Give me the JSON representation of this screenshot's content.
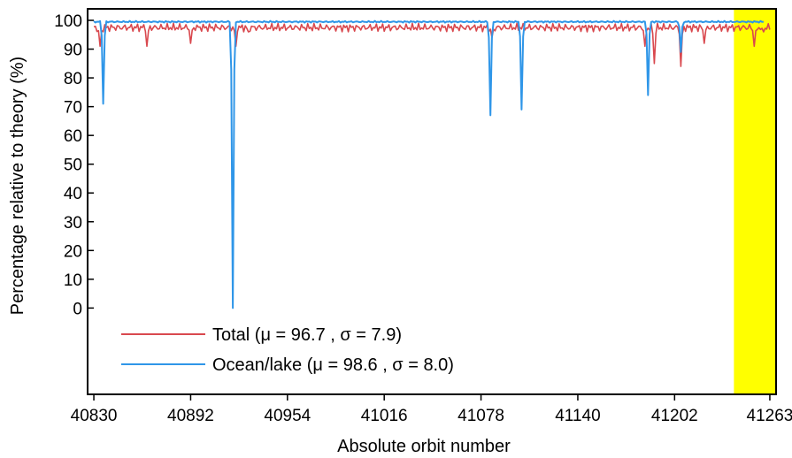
{
  "chart_data": {
    "type": "line",
    "xlabel": "Absolute orbit number",
    "ylabel": "Percentage relative to theory (%)",
    "xlim": [
      40826,
      41267
    ],
    "ylim": [
      -30,
      104
    ],
    "x_ticks": [
      40830,
      40892,
      40954,
      41016,
      41078,
      41140,
      41202,
      41263
    ],
    "y_ticks": [
      0,
      10,
      20,
      30,
      40,
      50,
      60,
      70,
      80,
      90,
      100
    ],
    "grid": false,
    "legend_position": "bottom-left",
    "highlight": {
      "from": 41240,
      "to": 41267,
      "color": "#ffff00"
    },
    "series": [
      {
        "name": "Total (μ = 96.7 , σ = 7.9)",
        "color": "#d9484e",
        "baseline": 97.5,
        "amplitude": 1.5,
        "x_range": [
          40830,
          41263
        ],
        "spikes": [
          [
            40834,
            91
          ],
          [
            40864,
            91
          ],
          [
            40892,
            92
          ],
          [
            40921,
            91
          ],
          [
            40929,
            96
          ],
          [
            41085,
            94
          ],
          [
            41183,
            91
          ],
          [
            41189,
            85
          ],
          [
            41206,
            84
          ],
          [
            41221,
            92
          ],
          [
            41253,
            91
          ],
          [
            41259,
            96
          ]
        ]
      },
      {
        "name": "Ocean/lake (μ = 98.6 , σ = 8.0)",
        "color": "#2f96e8",
        "baseline": 99.5,
        "amplitude": 0.3,
        "x_range": [
          40830,
          41259
        ],
        "spikes": [
          [
            40836,
            71
          ],
          [
            40919,
            0
          ],
          [
            41084,
            67
          ],
          [
            41104,
            69
          ],
          [
            41185,
            74
          ],
          [
            41206,
            89
          ]
        ]
      }
    ]
  }
}
